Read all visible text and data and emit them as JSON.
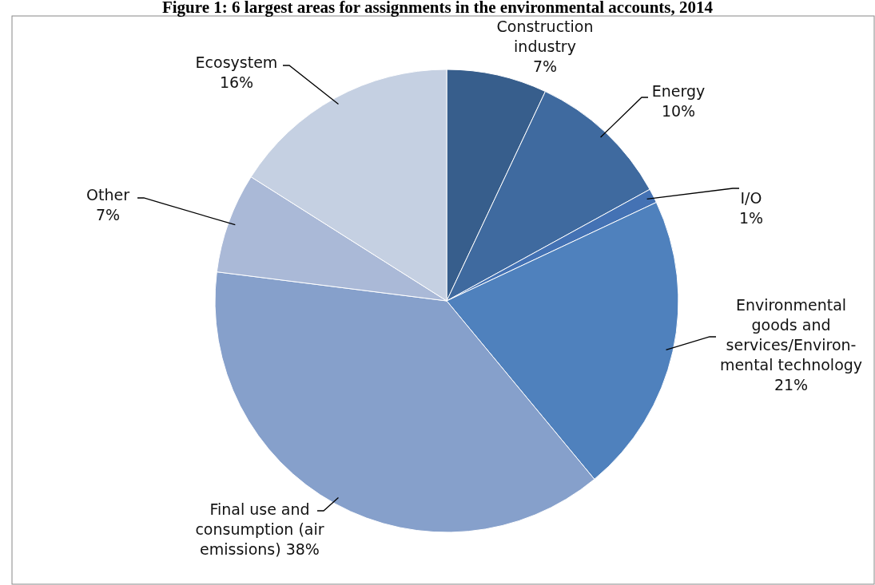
{
  "chart_data": {
    "type": "pie",
    "title": "Figure 1: 6 largest areas for assignments in the environmental accounts, 2014",
    "categories": [
      "Construction\nindustry",
      "Energy",
      "I/O",
      "Environmental\ngoods and\nservices/Environ-\nmental technology",
      "Final use and\nconsumption (air\nemissions)",
      "Other",
      "Ecosystem"
    ],
    "values": [
      7,
      10,
      1,
      21,
      38,
      7,
      16
    ],
    "value_labels": [
      "7%",
      "10%",
      "1%",
      "21%",
      "38%",
      "7%",
      "16%"
    ],
    "colors": [
      "#375e8c",
      "#3f6a9f",
      "#4472b4",
      "#4f81bd",
      "#86a0cb",
      "#aab9d7",
      "#c5d0e2"
    ]
  }
}
